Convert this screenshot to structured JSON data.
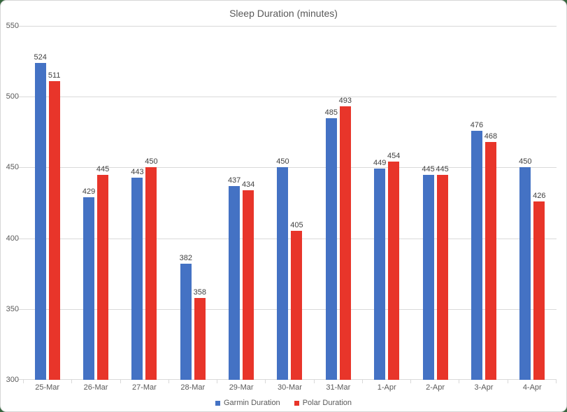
{
  "chart_data": {
    "type": "bar",
    "title": "Sleep Duration (minutes)",
    "categories": [
      "25-Mar",
      "26-Mar",
      "27-Mar",
      "28-Mar",
      "29-Mar",
      "30-Mar",
      "31-Mar",
      "1-Apr",
      "2-Apr",
      "3-Apr",
      "4-Apr"
    ],
    "series": [
      {
        "name": "Garmin Duration",
        "color": "#4472C4",
        "values": [
          524,
          429,
          443,
          382,
          437,
          450,
          485,
          449,
          445,
          476,
          450
        ]
      },
      {
        "name": "Polar Duration",
        "color": "#E8352A",
        "values": [
          511,
          445,
          450,
          358,
          434,
          405,
          493,
          454,
          445,
          468,
          426
        ]
      }
    ],
    "ylim": [
      300,
      550
    ],
    "yticks": [
      550,
      500,
      450,
      400,
      350,
      300
    ],
    "ytick_step": 50,
    "grid": true,
    "legend_position": "bottom",
    "gridline_color": "#d9d9d9",
    "axis_text_color": "#595959",
    "data_label_color": "#404040"
  }
}
